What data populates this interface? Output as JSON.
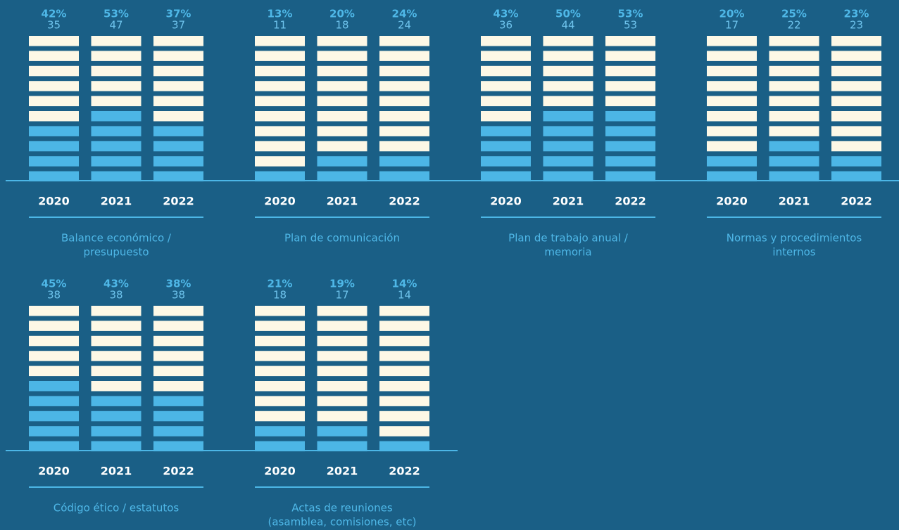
{
  "chart_data": {
    "type": "waffle-bars",
    "cream_color": "#fdf8e6",
    "blue_color": "#4cb6e6",
    "groups": [
      {
        "title": [
          "Balance económico /",
          "presupuesto"
        ],
        "categories": [
          "2020",
          "2021",
          "2022"
        ],
        "values": [
          42,
          53,
          37
        ],
        "value_labels": [
          "42%",
          "53%",
          "37%"
        ],
        "counts": [
          35,
          47,
          37
        ]
      },
      {
        "title": [
          "Plan de comunicación"
        ],
        "categories": [
          "2020",
          "2021",
          "2022"
        ],
        "values": [
          13,
          20,
          24
        ],
        "value_labels": [
          "13%",
          "20%",
          "24%"
        ],
        "counts": [
          11,
          18,
          24
        ]
      },
      {
        "title": [
          "Plan de trabajo anual /",
          "memoria"
        ],
        "categories": [
          "2020",
          "2021",
          "2022"
        ],
        "values": [
          43,
          50,
          53
        ],
        "value_labels": [
          "43%",
          "50%",
          "53%"
        ],
        "counts": [
          36,
          44,
          53
        ]
      },
      {
        "title": [
          "Normas y procedimientos",
          "internos"
        ],
        "categories": [
          "2020",
          "2021",
          "2022"
        ],
        "values": [
          20,
          25,
          23
        ],
        "value_labels": [
          "20%",
          "25%",
          "23%"
        ],
        "counts": [
          17,
          22,
          23
        ]
      },
      {
        "title": [
          "Código ético / estatutos"
        ],
        "categories": [
          "2020",
          "2021",
          "2022"
        ],
        "values": [
          45,
          43,
          38
        ],
        "value_labels": [
          "45%",
          "43%",
          "38%"
        ],
        "counts": [
          38,
          38,
          38
        ]
      },
      {
        "title": [
          "Actas de reuniones",
          "(asamblea, comisiones, etc)"
        ],
        "categories": [
          "2020",
          "2021",
          "2022"
        ],
        "values": [
          21,
          19,
          14
        ],
        "value_labels": [
          "21%",
          "19%",
          "14%"
        ],
        "counts": [
          18,
          17,
          14
        ]
      }
    ]
  }
}
